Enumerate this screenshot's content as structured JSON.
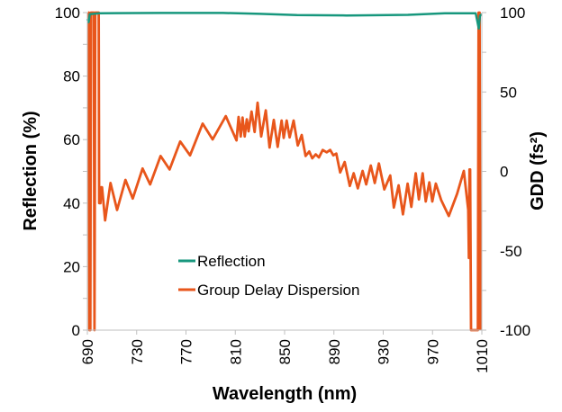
{
  "chart_data": {
    "type": "line",
    "xlabel": "Wavelength (nm)",
    "ylabel": "Reflection (%)",
    "y2label": "GDD (fs²)",
    "xlim": [
      690,
      1010
    ],
    "ylim": [
      0,
      100
    ],
    "y2lim": [
      -100,
      100
    ],
    "xticks": [
      "690",
      "730",
      "770",
      "810",
      "850",
      "890",
      "930",
      "970",
      "1010"
    ],
    "yticks": [
      "0",
      "20",
      "40",
      "60",
      "80",
      "100"
    ],
    "y2ticks": [
      "-100",
      "-50",
      "0",
      "50",
      "100"
    ],
    "grid": false,
    "legend_placement": "bottom-center",
    "colors": {
      "reflection": "#17977d",
      "gdd": "#e8561b"
    },
    "series": [
      {
        "name": "Reflection",
        "axis": "left",
        "x": [
          690,
          691,
          692,
          700,
          750,
          800,
          830,
          860,
          900,
          950,
          980,
          1005,
          1006.5,
          1007.5,
          1008.5,
          1010
        ],
        "y": [
          98,
          97,
          99.5,
          99.8,
          99.9,
          99.9,
          99.6,
          99.2,
          99.1,
          99.3,
          99.8,
          99.8,
          97,
          95,
          99,
          99.5
        ]
      },
      {
        "name": "Group Delay Dispersion",
        "axis": "right",
        "x": [
          690.5,
          691.2,
          691.6,
          692.4,
          692.9,
          695.2,
          695.8,
          696.4,
          699.2,
          699.6,
          700.6,
          701.2,
          701.9,
          704.4,
          708.8,
          714.1,
          720.9,
          726.8,
          734.8,
          740.9,
          749.4,
          756.7,
          765.3,
          773.3,
          783.5,
          791.6,
          802.3,
          811.0,
          812.7,
          814.4,
          815.9,
          817.6,
          819.3,
          820.8,
          823.2,
          825.7,
          828.1,
          831.0,
          834.7,
          837.8,
          841.2,
          844.4,
          847.6,
          849.3,
          851.7,
          854.1,
          857.3,
          860.7,
          863.9,
          867.0,
          870.0,
          872.4,
          875.3,
          877.8,
          880.9,
          884.1,
          887.0,
          889.5,
          891.9,
          895.1,
          898.7,
          902.9,
          906.0,
          909.4,
          913.3,
          916.2,
          919.9,
          923.1,
          926.5,
          930.9,
          935.7,
          938.6,
          942.5,
          946.0,
          949.8,
          952.8,
          956.4,
          958.9,
          962.0,
          964.5,
          967.4,
          969.8,
          972.7,
          977.0,
          983.2,
          990.0,
          995.4,
          999.0,
          999.5,
          1000.0,
          1000.5,
          1001.2,
          1001.5,
          1006.8,
          1007.4,
          1008.2,
          1008.8
        ],
        "y": [
          100,
          100,
          -100,
          -100,
          100,
          100,
          -100,
          100,
          100,
          -20,
          -20,
          -10,
          -10,
          -30.9,
          -7.3,
          -24.3,
          -5.4,
          -17.1,
          1.8,
          -8.2,
          9.7,
          1.2,
          18.8,
          10.1,
          30.1,
          20.1,
          34.8,
          19.5,
          34.3,
          22.0,
          33.9,
          22.0,
          32.8,
          25.2,
          37.7,
          24.8,
          43.3,
          22.0,
          38.4,
          15.0,
          32.4,
          15.4,
          32.0,
          21.1,
          32.0,
          21.4,
          32.0,
          16.3,
          22.9,
          9.7,
          12.5,
          8.2,
          10.7,
          8.8,
          13.5,
          12.0,
          13.5,
          10.1,
          11.2,
          -0.7,
          5.9,
          -9.2,
          -1.2,
          -10.7,
          0.3,
          -8.2,
          3.7,
          -7.3,
          5.0,
          -11.4,
          -2.6,
          -22.8,
          -8.8,
          -27.1,
          -7.7,
          -22.4,
          -1.2,
          -17.7,
          -1.2,
          -19.0,
          -6.9,
          -19.0,
          -7.7,
          -18.0,
          -28.1,
          -14.0,
          0.3,
          -24.3,
          -54.5,
          1.2,
          1.2,
          -100,
          -100,
          -100,
          100,
          100,
          -100
        ]
      }
    ]
  }
}
